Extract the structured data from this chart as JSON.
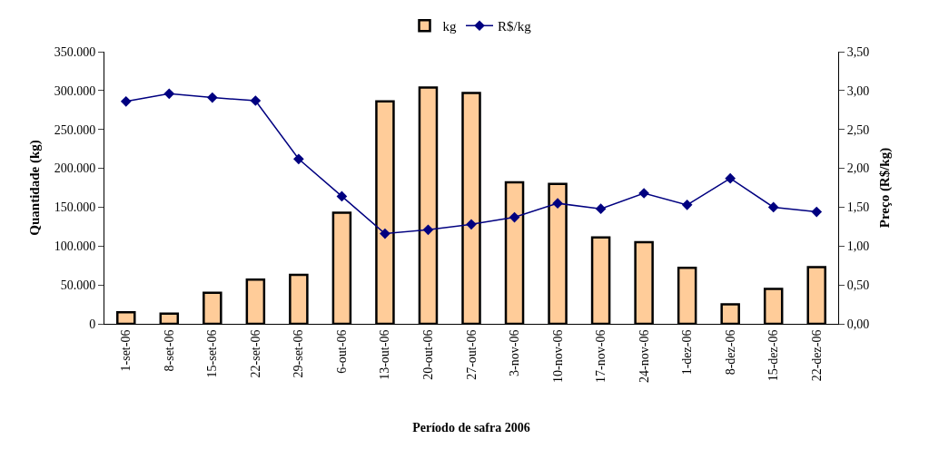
{
  "chart_data": {
    "type": "bar",
    "xlabel": "Período de safra 2006",
    "ylabel": "Quantidade (kg)",
    "y2label": "Preço (R$/kg)",
    "categories": [
      "1-set-06",
      "8-set-06",
      "15-set-06",
      "22-set-06",
      "29-set-06",
      "6-out-06",
      "13-out-06",
      "20-out-06",
      "27-out-06",
      "3-nov-06",
      "10-nov-06",
      "17-nov-06",
      "24-nov-06",
      "1-dez-06",
      "8-dez-06",
      "15-dez-06",
      "22-dez-06"
    ],
    "series": [
      {
        "name": "kg",
        "color": "#ffcc99",
        "values": [
          15000,
          13000,
          40000,
          57000,
          63000,
          143000,
          286000,
          304000,
          297000,
          182000,
          180000,
          111000,
          105000,
          72000,
          25000,
          45000,
          73000
        ]
      },
      {
        "name": "R$/kg",
        "type": "line",
        "axis": "y2",
        "color": "#000080",
        "marker": "diamond",
        "values": [
          2.86,
          2.96,
          2.91,
          2.87,
          2.12,
          1.64,
          1.16,
          1.21,
          1.28,
          1.37,
          1.55,
          1.48,
          1.68,
          1.53,
          1.87,
          1.5,
          1.44
        ]
      }
    ],
    "ylim": [
      0,
      350000
    ],
    "yticks": [
      {
        "value": 0,
        "label": "0"
      },
      {
        "value": 50000,
        "label": "50.000"
      },
      {
        "value": 100000,
        "label": "100.000"
      },
      {
        "value": 150000,
        "label": "150.000"
      },
      {
        "value": 200000,
        "label": "200.000"
      },
      {
        "value": 250000,
        "label": "250.000"
      },
      {
        "value": 300000,
        "label": "300.000"
      },
      {
        "value": 350000,
        "label": "350.000"
      }
    ],
    "y2lim": [
      0,
      3.5
    ],
    "y2ticks": [
      {
        "value": 0,
        "label": "0,00"
      },
      {
        "value": 0.5,
        "label": "0,50"
      },
      {
        "value": 1,
        "label": "1,00"
      },
      {
        "value": 1.5,
        "label": "1,50"
      },
      {
        "value": 2,
        "label": "2,00"
      },
      {
        "value": 2.5,
        "label": "2,50"
      },
      {
        "value": 3,
        "label": "3,00"
      },
      {
        "value": 3.5,
        "label": "3,50"
      }
    ],
    "grid": false,
    "legend": "top"
  }
}
